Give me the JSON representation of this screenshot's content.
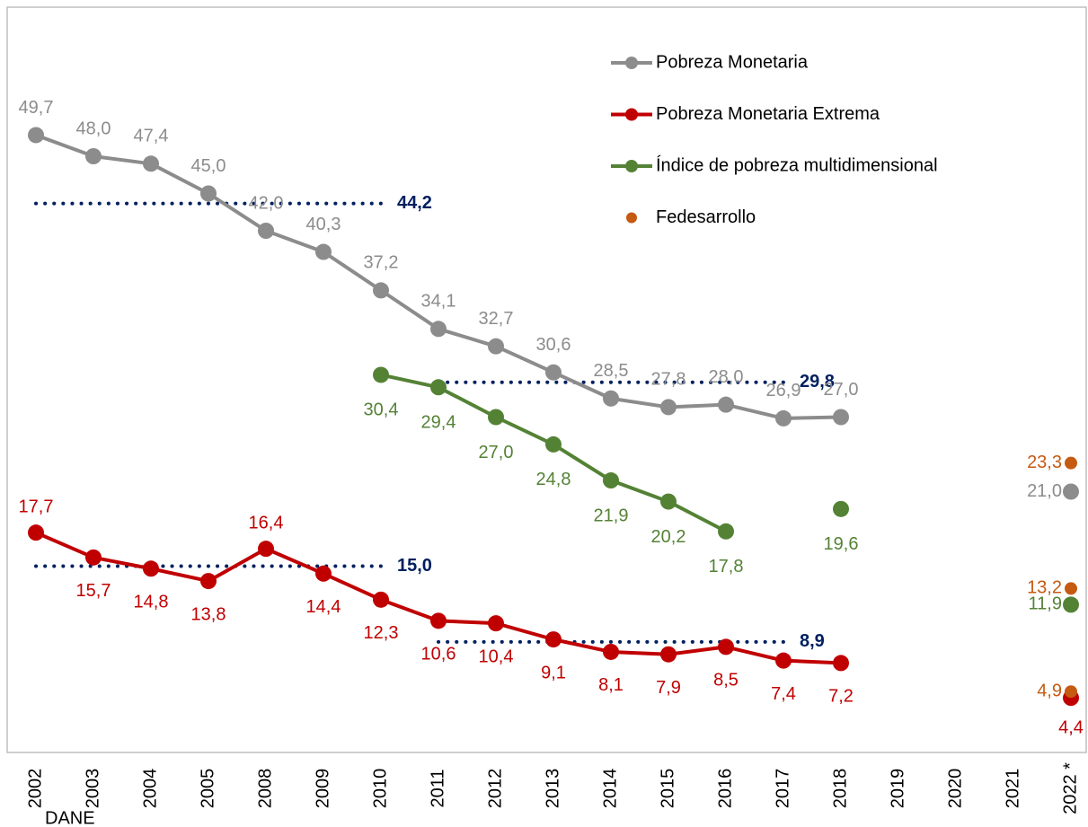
{
  "chart_data": {
    "type": "line",
    "categories": [
      "2002",
      "2003",
      "2004",
      "2005",
      "2008",
      "2009",
      "2010",
      "2011",
      "2012",
      "2013",
      "2014",
      "2015",
      "2016",
      "2017",
      "2018",
      "2019",
      "2020",
      "2021",
      "2022 *"
    ],
    "ylim": [
      0,
      60
    ],
    "series": [
      {
        "name": "Pobreza Monetaria",
        "color": "#8c8c8c",
        "values": [
          49.7,
          48.0,
          47.4,
          45.0,
          42.0,
          40.3,
          37.2,
          34.1,
          32.7,
          30.6,
          28.5,
          27.8,
          28.0,
          26.9,
          27.0,
          null,
          null,
          null,
          21.0
        ],
        "value_labels": [
          "49,7",
          "48,0",
          "47,4",
          "45,0",
          "42,0",
          "40,3",
          "37,2",
          "34,1",
          "32,7",
          "30,6",
          "28,5",
          "27,8",
          "28,0",
          "26,9",
          "27,0",
          null,
          null,
          null,
          "21,0"
        ]
      },
      {
        "name": "Pobreza Monetaria Extrema",
        "color": "#c00000",
        "values": [
          17.7,
          15.7,
          14.8,
          13.8,
          16.4,
          14.4,
          12.3,
          10.6,
          10.4,
          9.1,
          8.1,
          7.9,
          8.5,
          7.4,
          7.2,
          null,
          null,
          null,
          4.4
        ],
        "value_labels": [
          "17,7",
          "15,7",
          "14,8",
          "13,8",
          "16,4",
          "14,4",
          "12,3",
          "10,6",
          "10,4",
          "9,1",
          "8,1",
          "7,9",
          "8,5",
          "7,4",
          "7,2",
          null,
          null,
          null,
          "4,4"
        ]
      },
      {
        "name": "Índice de pobreza multidimensional",
        "color": "#548235",
        "values": [
          null,
          null,
          null,
          null,
          null,
          null,
          30.4,
          29.4,
          27.0,
          24.8,
          21.9,
          20.2,
          17.8,
          null,
          19.6,
          null,
          null,
          null,
          11.9
        ],
        "value_labels": [
          null,
          null,
          null,
          null,
          null,
          null,
          "30,4",
          "29,4",
          "27,0",
          "24,8",
          "21,9",
          "20,2",
          "17,8",
          null,
          "19,6",
          null,
          null,
          null,
          "11,9"
        ]
      }
    ],
    "fedesarrollo": {
      "name": "Fedesarrollo",
      "color": "#c55a11",
      "category": "2022 *",
      "values": [
        23.3,
        13.2,
        4.9
      ],
      "value_labels": [
        "23,3",
        "13,2",
        "4,9"
      ]
    },
    "reference_lines": [
      {
        "value": 44.2,
        "label": "44,2",
        "from": "2002",
        "to": "2010"
      },
      {
        "value": 29.8,
        "label": "29,8",
        "from": "2011",
        "to": "2017"
      },
      {
        "value": 15.0,
        "label": "15,0",
        "from": "2002",
        "to": "2010"
      },
      {
        "value": 8.9,
        "label": "8,9",
        "from": "2011",
        "to": "2017"
      }
    ],
    "reference_color": "#002060",
    "source": "DANE"
  }
}
